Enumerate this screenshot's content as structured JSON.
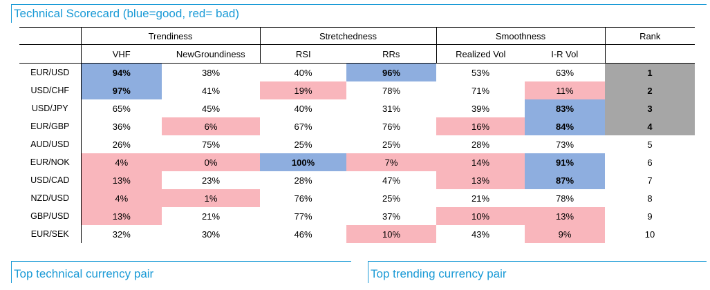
{
  "title": "Technical Scorecard (blue=good, red= bad)",
  "groups": {
    "trendiness": "Trendiness",
    "stretchedness": "Stretchedness",
    "smoothness": "Smoothness",
    "rank": "Rank"
  },
  "columns": [
    "VHF",
    "NewGroundiness",
    "RSI",
    "RRs",
    "Realized Vol",
    "I-R Vol"
  ],
  "rows": [
    {
      "pair": "EUR/USD",
      "v": [
        "94%",
        "38%",
        "40%",
        "96%",
        "53%",
        "63%"
      ],
      "rank": "1"
    },
    {
      "pair": "USD/CHF",
      "v": [
        "97%",
        "41%",
        "19%",
        "78%",
        "71%",
        "11%"
      ],
      "rank": "2"
    },
    {
      "pair": "USD/JPY",
      "v": [
        "65%",
        "45%",
        "40%",
        "31%",
        "39%",
        "83%"
      ],
      "rank": "3"
    },
    {
      "pair": "EUR/GBP",
      "v": [
        "36%",
        "6%",
        "67%",
        "76%",
        "16%",
        "84%"
      ],
      "rank": "4"
    },
    {
      "pair": "AUD/USD",
      "v": [
        "26%",
        "75%",
        "25%",
        "25%",
        "28%",
        "73%"
      ],
      "rank": "5"
    },
    {
      "pair": "EUR/NOK",
      "v": [
        "4%",
        "0%",
        "100%",
        "7%",
        "14%",
        "91%"
      ],
      "rank": "6"
    },
    {
      "pair": "USD/CAD",
      "v": [
        "13%",
        "23%",
        "28%",
        "47%",
        "13%",
        "87%"
      ],
      "rank": "7"
    },
    {
      "pair": "NZD/USD",
      "v": [
        "4%",
        "1%",
        "76%",
        "25%",
        "21%",
        "78%"
      ],
      "rank": "8"
    },
    {
      "pair": "GBP/USD",
      "v": [
        "13%",
        "21%",
        "77%",
        "37%",
        "10%",
        "13%"
      ],
      "rank": "9"
    },
    {
      "pair": "EUR/SEK",
      "v": [
        "32%",
        "30%",
        "46%",
        "10%",
        "43%",
        "9%"
      ],
      "rank": "10"
    }
  ],
  "highlight_colors": {
    "good": "#8eaedf",
    "bad": "#f9b6bc",
    "top_rank": "#a6a6a6"
  },
  "bottom_left_title": "Top technical currency pair",
  "bottom_right_title": "Top trending currency pair"
}
